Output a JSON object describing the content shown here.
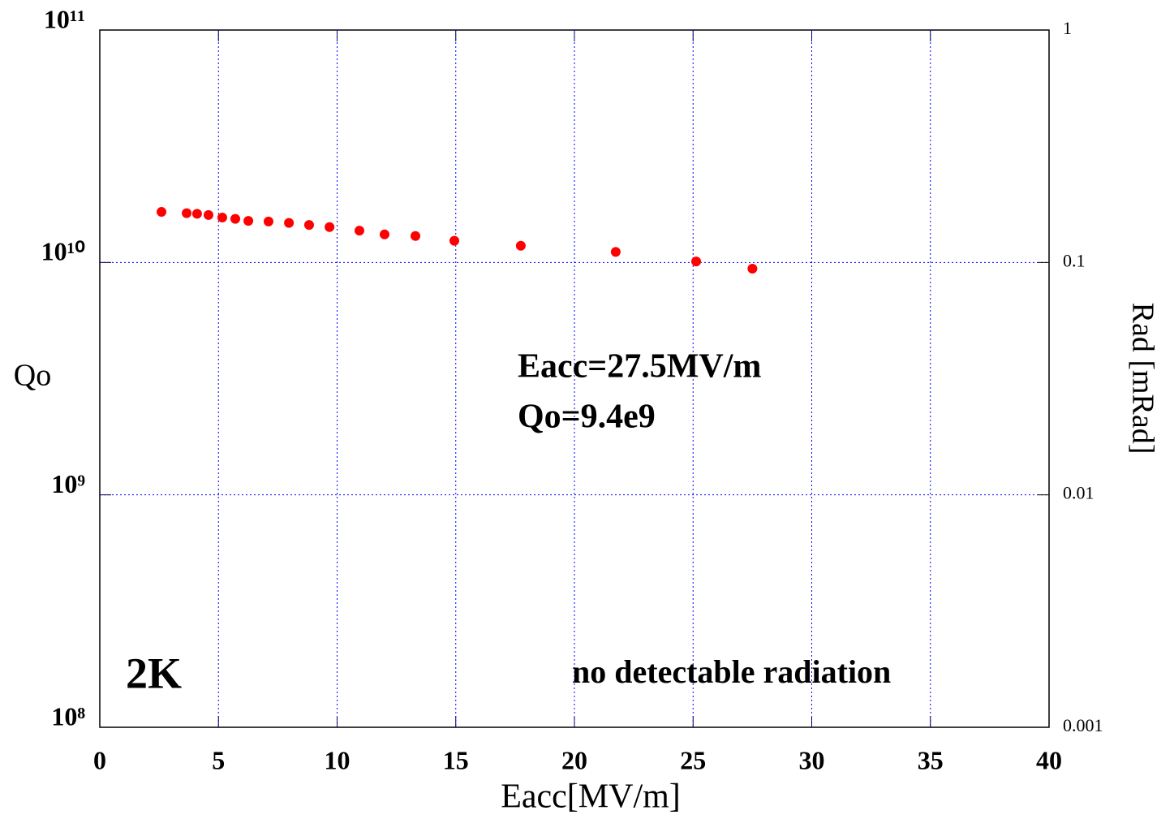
{
  "chart_data": {
    "type": "scatter",
    "xlabel": "Eacc[MV/m]",
    "ylabel": "Qo",
    "y2label": "Rad [mRad]",
    "x": [
      2.6,
      3.66,
      4.1,
      4.58,
      5.16,
      5.71,
      6.26,
      7.11,
      7.97,
      8.82,
      9.68,
      10.94,
      12.0,
      13.3,
      14.94,
      17.74,
      21.74,
      25.13,
      27.5
    ],
    "series": [
      {
        "color": "#ff0000",
        "values": [
          16500000000.0,
          16300000000.0,
          16200000000.0,
          16000000000.0,
          15600000000.0,
          15400000000.0,
          15100000000.0,
          15000000000.0,
          14800000000.0,
          14500000000.0,
          14200000000.0,
          13700000000.0,
          13200000000.0,
          13000000000.0,
          12400000000.0,
          11800000000.0,
          11100000000.0,
          10100000000.0,
          9400000000.0
        ]
      }
    ],
    "xlim": [
      0,
      40
    ],
    "xticks": [
      0,
      5,
      10,
      15,
      20,
      25,
      30,
      35,
      40
    ],
    "ylim": [
      100000000.0,
      100000000000.0
    ],
    "ylog": true,
    "yticks": [
      {
        "value": 100000000.0,
        "label": "10⁸"
      },
      {
        "value": 1000000000.0,
        "label": "10⁹"
      },
      {
        "value": 10000000000.0,
        "label": "10¹⁰"
      },
      {
        "value": 100000000000.0,
        "label": "10¹¹"
      }
    ],
    "y2lim": [
      0.001,
      1
    ],
    "y2log": true,
    "y2ticks": [
      0.001,
      0.01,
      0.1,
      1
    ],
    "grid": true,
    "grid_color": "#0000ff",
    "annotations": [
      "Eacc=27.5MV/m",
      "Qo=9.4e9",
      "2K",
      "no detectable radiation"
    ]
  }
}
